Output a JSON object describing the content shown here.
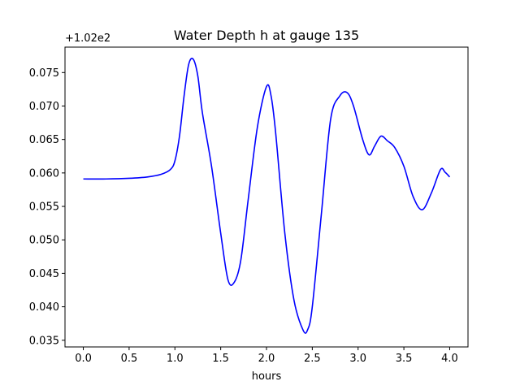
{
  "chart_data": {
    "type": "line",
    "title": "Water Depth h at gauge 135",
    "xlabel": "hours",
    "ylabel": "",
    "y_offset_label": "+1.02e2",
    "xlim": [
      -0.2,
      4.2
    ],
    "ylim": [
      0.034,
      0.0788
    ],
    "xticks": [
      0.0,
      0.5,
      1.0,
      1.5,
      2.0,
      2.5,
      3.0,
      3.5,
      4.0
    ],
    "xtick_labels": [
      "0.0",
      "0.5",
      "1.0",
      "1.5",
      "2.0",
      "2.5",
      "3.0",
      "3.5",
      "4.0"
    ],
    "yticks": [
      0.035,
      0.04,
      0.045,
      0.05,
      0.055,
      0.06,
      0.065,
      0.07,
      0.075
    ],
    "ytick_labels": [
      "0.035",
      "0.040",
      "0.045",
      "0.050",
      "0.055",
      "0.060",
      "0.065",
      "0.070",
      "0.075"
    ],
    "grid": false,
    "series": [
      {
        "color": "#0000ff",
        "x": [
          0.0,
          0.25,
          0.5,
          0.7,
          0.85,
          0.95,
          1.0,
          1.05,
          1.1,
          1.15,
          1.2,
          1.25,
          1.3,
          1.4,
          1.5,
          1.58,
          1.65,
          1.72,
          1.8,
          1.9,
          2.0,
          2.05,
          2.1,
          2.2,
          2.3,
          2.4,
          2.45,
          2.5,
          2.6,
          2.7,
          2.8,
          2.88,
          2.95,
          3.05,
          3.12,
          3.18,
          3.25,
          3.32,
          3.4,
          3.5,
          3.6,
          3.7,
          3.8,
          3.9,
          3.95,
          4.0
        ],
        "y": [
          0.0591,
          0.0591,
          0.0592,
          0.0594,
          0.0598,
          0.0605,
          0.0618,
          0.0655,
          0.0715,
          0.0762,
          0.077,
          0.0745,
          0.069,
          0.061,
          0.051,
          0.044,
          0.0437,
          0.047,
          0.056,
          0.0668,
          0.0729,
          0.0715,
          0.066,
          0.051,
          0.041,
          0.0365,
          0.0366,
          0.04,
          0.054,
          0.068,
          0.0715,
          0.072,
          0.07,
          0.065,
          0.0627,
          0.064,
          0.0655,
          0.0648,
          0.0638,
          0.061,
          0.0565,
          0.0545,
          0.057,
          0.0605,
          0.0601,
          0.0594
        ]
      }
    ]
  }
}
